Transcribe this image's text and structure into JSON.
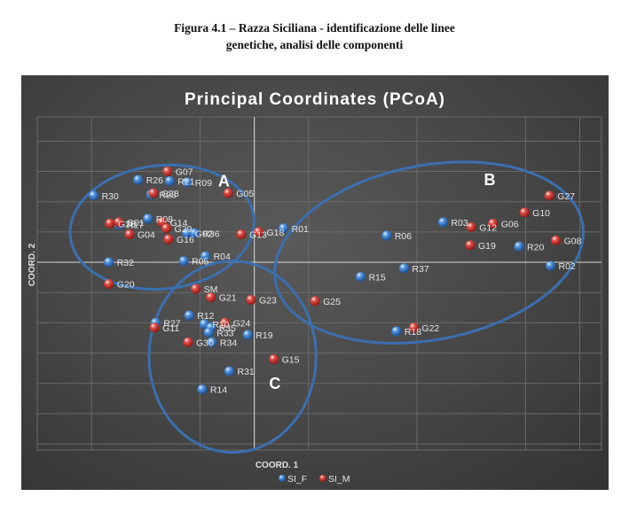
{
  "caption": {
    "line1": "Figura 4.1 – Razza Siciliana - identificazione delle linee",
    "line2": "genetiche, analisi delle componenti"
  },
  "chart_data": {
    "type": "scatter",
    "title": "Principal Coordinates (PCoA)",
    "xlabel": "COORD. 1",
    "ylabel": "COORD. 2",
    "xlim": [
      -2.0,
      3.2
    ],
    "ylim": [
      -1.55,
      1.2
    ],
    "grid": true,
    "legend_position": "bottom",
    "colors": {
      "SI_F": "#3f86d6",
      "SI_M": "#d93a34",
      "ellipse": "#3b6fb0"
    },
    "series": [
      {
        "name": "SI_F",
        "points": [
          {
            "label": "R26",
            "x": -1.07,
            "y": 0.68
          },
          {
            "label": "R21",
            "x": -0.78,
            "y": 0.67
          },
          {
            "label": "R09",
            "x": -0.62,
            "y": 0.66
          },
          {
            "label": "R28",
            "x": -0.95,
            "y": 0.56
          },
          {
            "label": "R30",
            "x": -1.48,
            "y": 0.55
          },
          {
            "label": "R08",
            "x": -0.98,
            "y": 0.36
          },
          {
            "label": "R17",
            "x": -1.25,
            "y": 0.31
          },
          {
            "label": "G02",
            "x": -0.62,
            "y": 0.24
          },
          {
            "label": "R36",
            "x": -0.55,
            "y": 0.24
          },
          {
            "label": "R04",
            "x": -0.45,
            "y": 0.05
          },
          {
            "label": "R32",
            "x": -1.34,
            "y": 0.0
          },
          {
            "label": "R05",
            "x": -0.65,
            "y": 0.01
          },
          {
            "label": "R01",
            "x": 0.27,
            "y": 0.28
          },
          {
            "label": "R03",
            "x": 1.74,
            "y": 0.33
          },
          {
            "label": "R06",
            "x": 1.22,
            "y": 0.22
          },
          {
            "label": "R20",
            "x": 2.44,
            "y": 0.13
          },
          {
            "label": "R02",
            "x": 2.73,
            "y": -0.03
          },
          {
            "label": "R37",
            "x": 1.38,
            "y": -0.05
          },
          {
            "label": "R15",
            "x": 0.98,
            "y": -0.12
          },
          {
            "label": "R18",
            "x": 1.31,
            "y": -0.57
          },
          {
            "label": "R12",
            "x": -0.6,
            "y": -0.44
          },
          {
            "label": "R27",
            "x": -0.91,
            "y": -0.5
          },
          {
            "label": "R10",
            "x": -0.46,
            "y": -0.51
          },
          {
            "label": "R35",
            "x": -0.4,
            "y": -0.54
          },
          {
            "label": "R33",
            "x": -0.42,
            "y": -0.58
          },
          {
            "label": "R34",
            "x": -0.39,
            "y": -0.66
          },
          {
            "label": "R19",
            "x": -0.06,
            "y": -0.6
          },
          {
            "label": "R31",
            "x": -0.23,
            "y": -0.9
          },
          {
            "label": "R14",
            "x": -0.48,
            "y": -1.05
          }
        ]
      },
      {
        "name": "SI_M",
        "points": [
          {
            "label": "G07",
            "x": -0.8,
            "y": 0.75
          },
          {
            "label": "G28",
            "x": -0.93,
            "y": 0.57
          },
          {
            "label": "G05",
            "x": -0.24,
            "y": 0.57
          },
          {
            "label": "G01",
            "x": -1.25,
            "y": 0.33
          },
          {
            "label": "G14",
            "x": -0.85,
            "y": 0.33
          },
          {
            "label": "G29",
            "x": -0.81,
            "y": 0.28
          },
          {
            "label": "G04",
            "x": -1.15,
            "y": 0.23
          },
          {
            "label": "G16",
            "x": -0.79,
            "y": 0.19
          },
          {
            "label": "G26",
            "x": -1.33,
            "y": 0.32
          },
          {
            "label": "G13",
            "x": -0.12,
            "y": 0.23
          },
          {
            "label": "G18",
            "x": 0.04,
            "y": 0.25
          },
          {
            "label": "G20",
            "x": -1.34,
            "y": -0.18
          },
          {
            "label": "G27",
            "x": 2.72,
            "y": 0.55
          },
          {
            "label": "G10",
            "x": 2.49,
            "y": 0.41
          },
          {
            "label": "G06",
            "x": 2.2,
            "y": 0.32
          },
          {
            "label": "G12",
            "x": 2.0,
            "y": 0.29
          },
          {
            "label": "G08",
            "x": 2.78,
            "y": 0.18
          },
          {
            "label": "G19",
            "x": 1.99,
            "y": 0.14
          },
          {
            "label": "SM",
            "x": -0.54,
            "y": -0.22
          },
          {
            "label": "G21",
            "x": -0.4,
            "y": -0.29
          },
          {
            "label": "G23",
            "x": -0.03,
            "y": -0.31
          },
          {
            "label": "G25",
            "x": 0.56,
            "y": -0.32
          },
          {
            "label": "G24",
            "x": -0.27,
            "y": -0.5
          },
          {
            "label": "G11",
            "x": -0.92,
            "y": -0.54
          },
          {
            "label": "G30",
            "x": -0.61,
            "y": -0.66
          },
          {
            "label": "G22",
            "x": 1.47,
            "y": -0.54
          },
          {
            "label": "G15",
            "x": 0.18,
            "y": -0.8
          }
        ]
      }
    ],
    "group_labels": [
      {
        "label": "A",
        "x": -0.28,
        "y": 0.67
      },
      {
        "label": "B",
        "x": 2.17,
        "y": 0.68
      },
      {
        "label": "C",
        "x": 0.19,
        "y": -1.0
      }
    ],
    "ellipses": [
      {
        "group": "A",
        "cx": -0.85,
        "cy": 0.29,
        "rx": 0.85,
        "ry": 0.51,
        "rotate": -6
      },
      {
        "group": "B",
        "cx": 1.61,
        "cy": 0.08,
        "rx": 1.44,
        "ry": 0.72,
        "rotate": -11
      },
      {
        "group": "C",
        "cx": -0.2,
        "cy": -0.78,
        "rx": 0.77,
        "ry": 0.79,
        "rotate": 0
      }
    ]
  }
}
